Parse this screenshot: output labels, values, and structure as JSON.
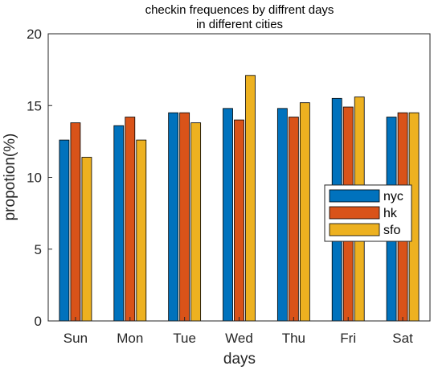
{
  "chart_data": {
    "type": "bar",
    "title": [
      "checkin frequences by diffrent days",
      "in different cities"
    ],
    "xlabel": "days",
    "ylabel": "propotion(%)",
    "categories": [
      "Sun",
      "Mon",
      "Tue",
      "Wed",
      "Thu",
      "Fri",
      "Sat"
    ],
    "ylim": [
      0,
      20
    ],
    "yticks": [
      "0",
      "5",
      "10",
      "15",
      "20"
    ],
    "grid": false,
    "legend_position": "right",
    "series": [
      {
        "name": "nyc",
        "color": "#0072BD",
        "values": [
          12.6,
          13.6,
          14.5,
          14.8,
          14.8,
          15.5,
          14.2
        ]
      },
      {
        "name": "hk",
        "color": "#D95319",
        "values": [
          13.8,
          14.2,
          14.5,
          14.0,
          14.2,
          14.9,
          14.5
        ]
      },
      {
        "name": "sfo",
        "color": "#EDB120",
        "values": [
          11.4,
          12.6,
          13.8,
          17.1,
          15.2,
          15.6,
          14.5
        ]
      }
    ]
  }
}
